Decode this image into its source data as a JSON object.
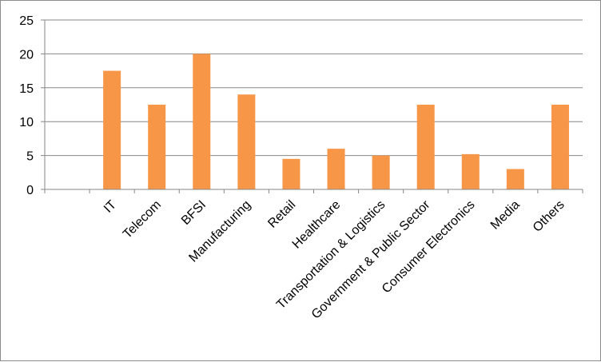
{
  "chart_data": {
    "type": "bar",
    "categories": [
      "",
      "IT",
      "Telecom",
      "BFSI",
      "Manufacturing",
      "Retail",
      "Healthcare",
      "Transportation & Logistics",
      "Government & Public Sector",
      "Consumer Electronics",
      "Media",
      "Others"
    ],
    "values": [
      null,
      17.5,
      12.5,
      20,
      14,
      4.5,
      6,
      5,
      12.5,
      5.2,
      3,
      12.5
    ],
    "title": "",
    "xlabel": "",
    "ylabel": "",
    "ylim": [
      0,
      25
    ],
    "yticks": [
      0,
      5,
      10,
      15,
      20,
      25
    ],
    "grid": true,
    "legend": "none",
    "colors": {
      "bar": "#F79646",
      "grid": "#878787",
      "axis": "#878787",
      "border": "#8c8c8c"
    }
  }
}
